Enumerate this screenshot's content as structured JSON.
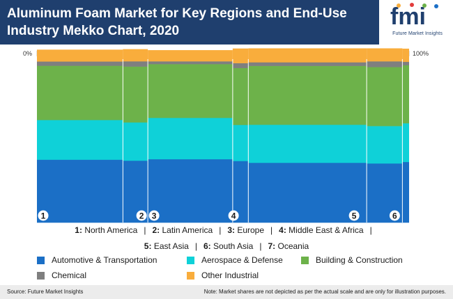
{
  "header": {
    "title": "Aluminum Foam Market for Key Regions and End-Use Industry Mekko Chart, 2020",
    "logo_text": "fmi",
    "logo_subtitle": "Future Market Insights"
  },
  "scale": {
    "left_label": "0%",
    "right_label": "100%"
  },
  "colors": {
    "automotive": "#1b6fc6",
    "aerospace": "#0fd1d8",
    "building": "#6db24a",
    "chemical": "#7f7f7f",
    "other": "#f9ad3c",
    "header_bg": "#1f3f6e"
  },
  "chart_data": {
    "type": "mekko",
    "title": "Aluminum Foam Market for Key Regions and End-Use Industry Mekko Chart, 2020",
    "x_range": [
      0,
      100
    ],
    "y_range": [
      0,
      100
    ],
    "regions": [
      {
        "number": "1",
        "name": "North America",
        "width": 23.1
      },
      {
        "number": "2",
        "name": "Latin America",
        "width": 6.7
      },
      {
        "number": "3",
        "name": "Europe",
        "width": 22.8
      },
      {
        "number": "4",
        "name": "Middle East & Africa",
        "width": 4.2
      },
      {
        "number": "5",
        "name": "East Asia",
        "width": 31.8
      },
      {
        "number": "6",
        "name": "South Asia",
        "width": 9.6
      },
      {
        "number": "7",
        "name": "Oceania",
        "width": 1.8
      }
    ],
    "series": [
      {
        "name": "Automotive & Transportation",
        "color": "#1b6fc6",
        "values": [
          38.5,
          37.9,
          38.8,
          37.7,
          36.6,
          36.2,
          37.1
        ]
      },
      {
        "name": "Aerospace & Defense",
        "color": "#0fd1d8",
        "values": [
          24.3,
          23.4,
          25.3,
          22.1,
          23.3,
          22.9,
          23.7
        ]
      },
      {
        "name": "Building & Construction",
        "color": "#6db24a",
        "values": [
          33.2,
          34.2,
          32.9,
          34.8,
          36.0,
          36.1,
          35.5
        ]
      },
      {
        "name": "Chemical",
        "color": "#7f7f7f",
        "values": [
          2.6,
          3.2,
          1.7,
          3.0,
          2.2,
          3.5,
          2.1
        ]
      },
      {
        "name": "Other Industrial",
        "color": "#f9ad3c",
        "values": [
          7.2,
          7.4,
          6.8,
          8.9,
          8.5,
          7.9,
          8.0
        ]
      }
    ],
    "grid": false
  },
  "region_legend": {
    "line1": [
      {
        "num": "1:",
        "name": "North America"
      },
      {
        "num": "2:",
        "name": "Latin America"
      },
      {
        "num": "3:",
        "name": "Europe"
      },
      {
        "num": "4:",
        "name": "Middle East & Africa"
      }
    ],
    "line2": [
      {
        "num": "5:",
        "name": "East Asia"
      },
      {
        "num": "6:",
        "name": "South Asia"
      },
      {
        "num": "7:",
        "name": "Oceania"
      }
    ]
  },
  "footer": {
    "source": "Source: Future Market Insights",
    "note": "Note: Market shares are not depicted as per the actual scale and are only for illustration purposes."
  }
}
